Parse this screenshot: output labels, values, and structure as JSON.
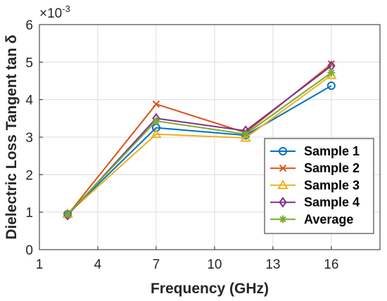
{
  "chart_data": {
    "type": "line",
    "xlabel": "Frequency (GHz)",
    "ylabel": "Dielectric Loss Tangent tan δ",
    "exponent_label": "×10",
    "exponent_power": "-3",
    "xlim": [
      1,
      18.5
    ],
    "ylim": [
      0,
      6
    ],
    "x_ticks": [
      1,
      4,
      7,
      10,
      13,
      16
    ],
    "y_ticks": [
      0,
      1,
      2,
      3,
      4,
      5,
      6
    ],
    "grid": true,
    "legend_position": "bottom-right",
    "x": [
      2.45,
      7,
      11.6,
      16
    ],
    "series": [
      {
        "name": "Sample 1",
        "color": "#0072BD",
        "marker": "circle",
        "values": [
          0.95,
          3.25,
          3.05,
          4.37
        ]
      },
      {
        "name": "Sample 2",
        "color": "#D95319",
        "marker": "x",
        "values": [
          0.93,
          3.88,
          3.12,
          4.95
        ]
      },
      {
        "name": "Sample 3",
        "color": "#EDB120",
        "marker": "triangle",
        "values": [
          0.95,
          3.08,
          2.98,
          4.65
        ]
      },
      {
        "name": "Sample 4",
        "color": "#7E2F8E",
        "marker": "diamond",
        "values": [
          0.92,
          3.5,
          3.17,
          4.9
        ]
      },
      {
        "name": "Average",
        "color": "#77AC30",
        "marker": "star",
        "values": [
          0.94,
          3.43,
          3.08,
          4.72
        ]
      }
    ]
  }
}
